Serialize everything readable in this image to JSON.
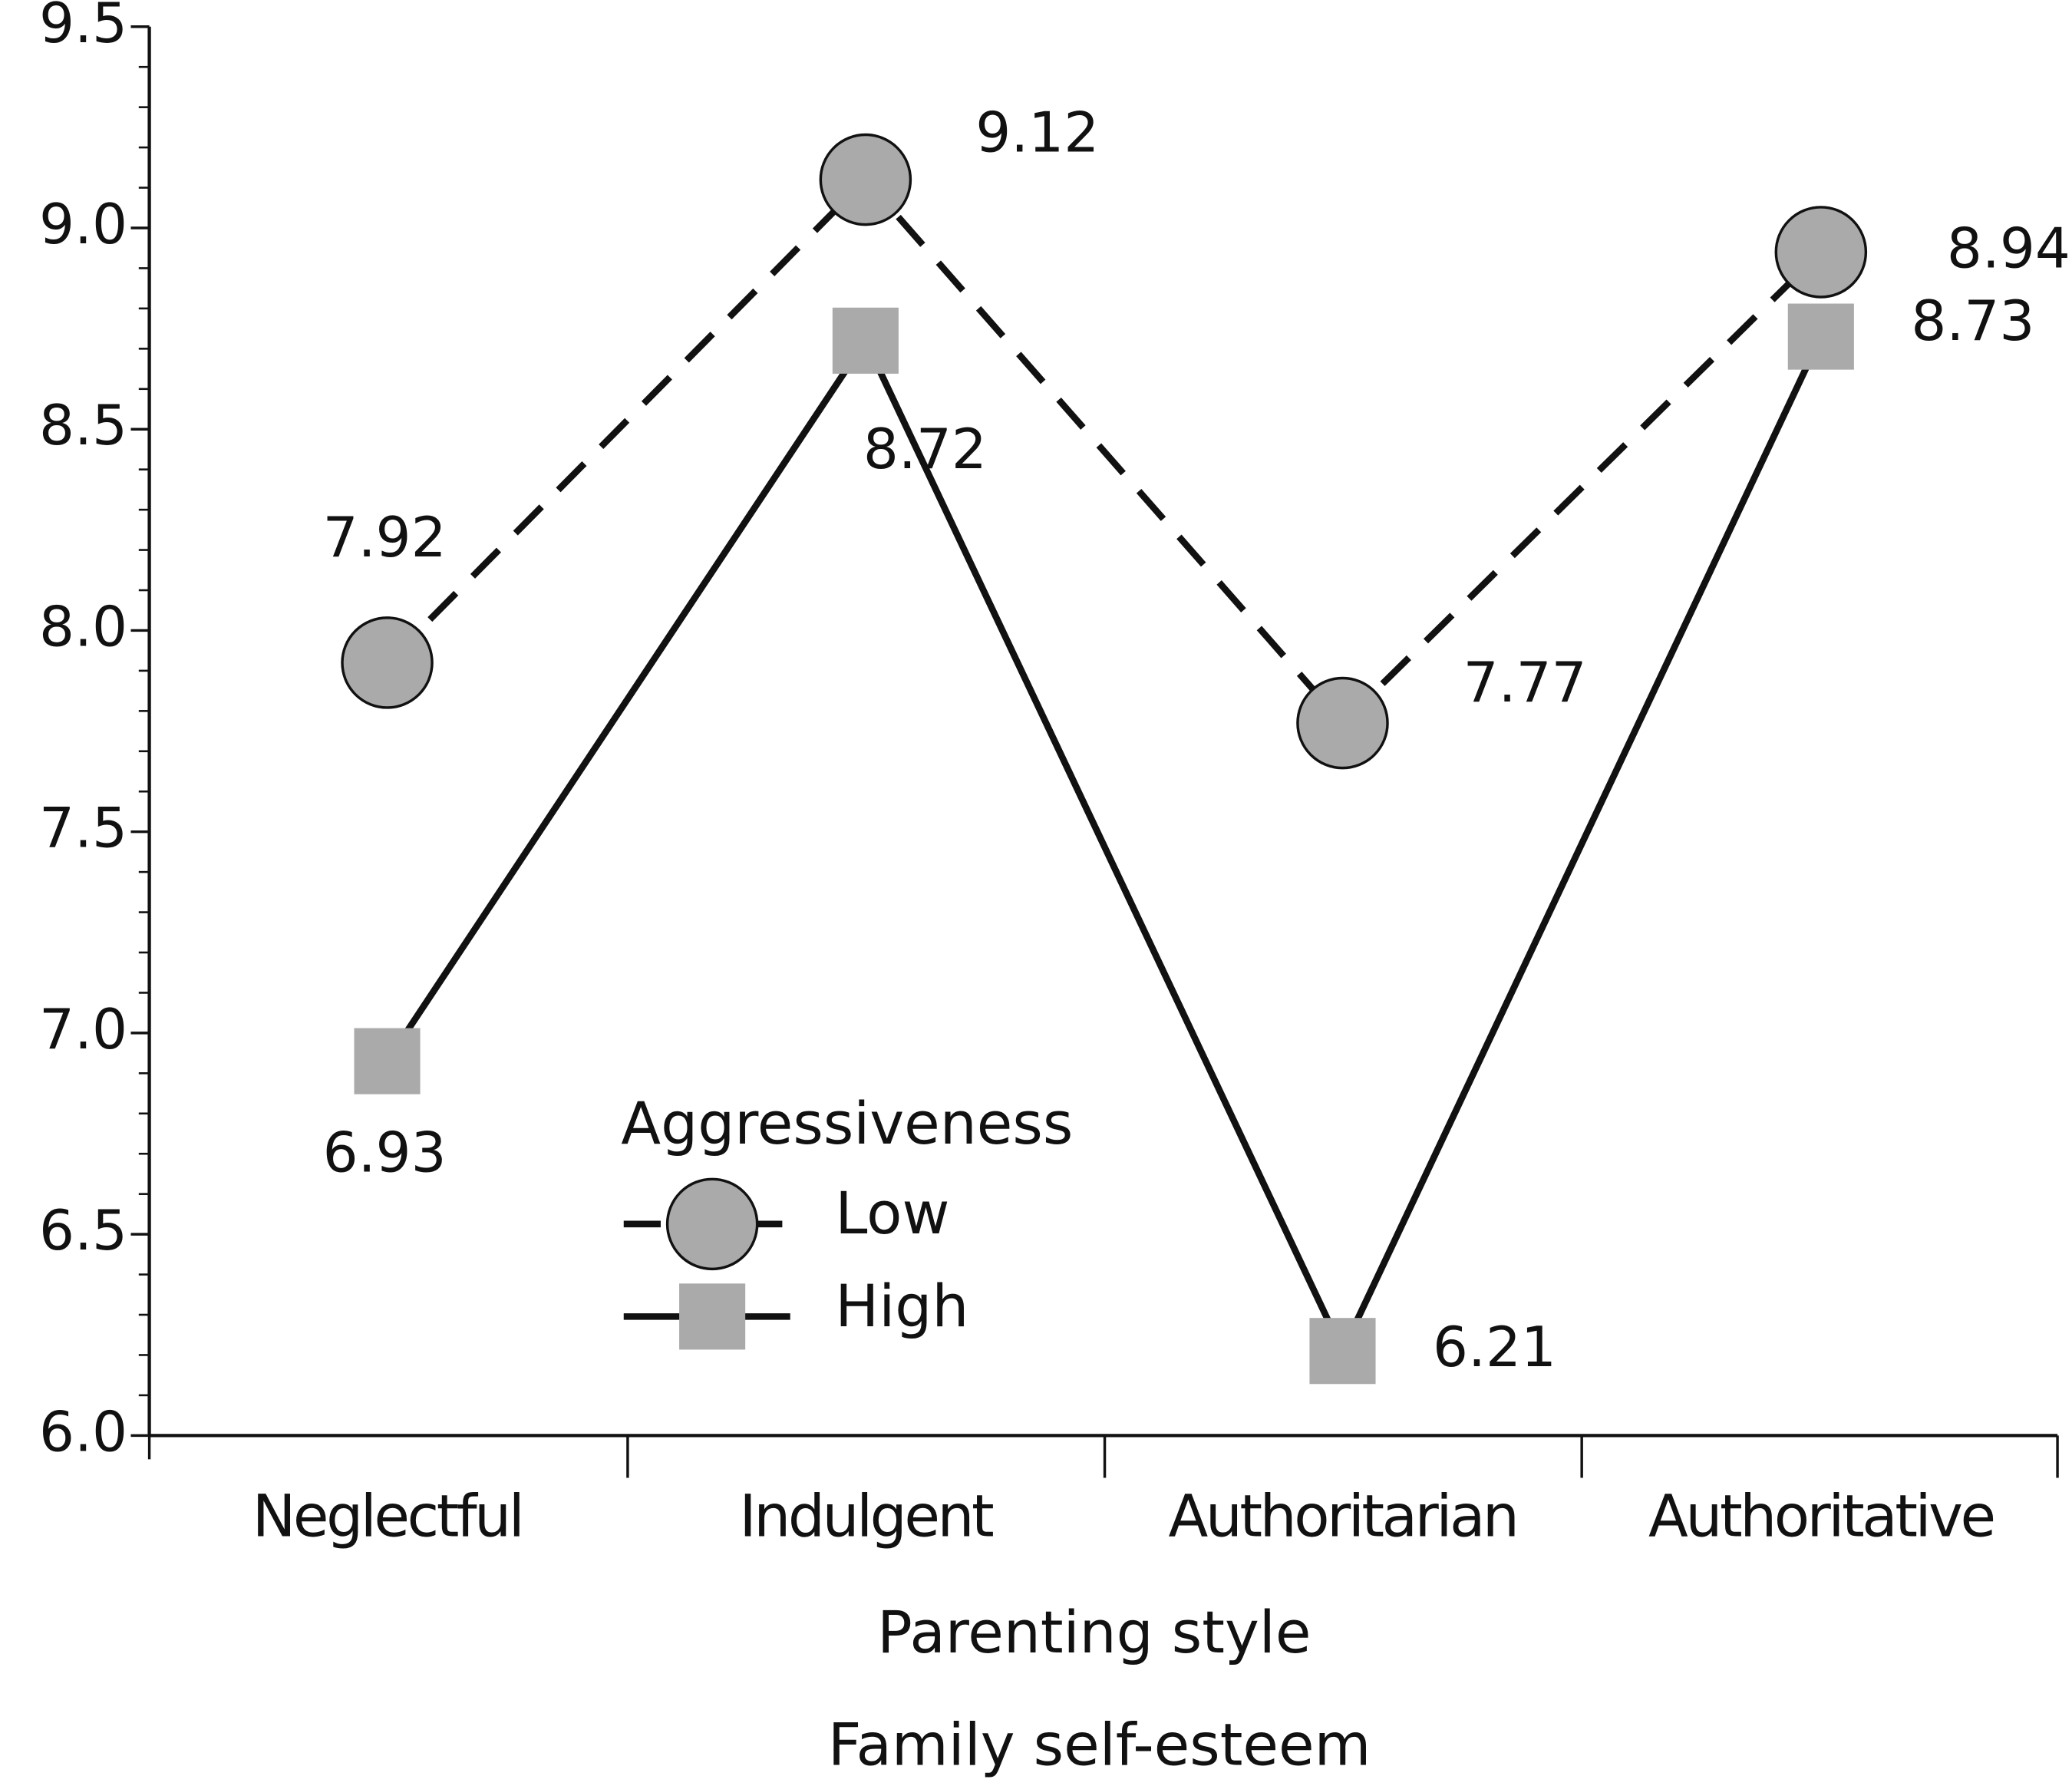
{
  "chart_data": {
    "type": "line",
    "xlabel": "Parenting style",
    "caption": "Family self-esteem",
    "legend_title": "Aggressiveness",
    "categories": [
      "Neglectful",
      "Indulgent",
      "Authoritarian",
      "Authoritative"
    ],
    "series": [
      {
        "name": "Low",
        "color": "#aaaaaa",
        "line": "dashed",
        "marker": "circle",
        "values": [
          7.92,
          9.12,
          7.77,
          8.94
        ]
      },
      {
        "name": "High",
        "color": "#aaaaaa",
        "line": "solid",
        "marker": "square",
        "values": [
          6.93,
          8.72,
          6.21,
          8.73
        ]
      }
    ],
    "ylim": [
      6.0,
      9.5
    ],
    "yticks": [
      {
        "value": 6,
        "label": "6.0"
      },
      6.5,
      {
        "value": 7,
        "label": "7.0"
      },
      7.5,
      {
        "value": 8,
        "label": "8.0"
      },
      8.5,
      {
        "value": 9,
        "label": "9.0"
      },
      9.5
    ],
    "minor_yticks": [
      6.1,
      6.2,
      6.3,
      6.4,
      6.6,
      6.7,
      6.8,
      6.9,
      7.1,
      7.2,
      7.3,
      7.4,
      7.6,
      7.7,
      7.8,
      7.9,
      8.1,
      8.2,
      8.3,
      8.4,
      8.6,
      8.7,
      8.8,
      8.9,
      9.1,
      9.2,
      9.3,
      9.4
    ],
    "legend": "lower center"
  }
}
